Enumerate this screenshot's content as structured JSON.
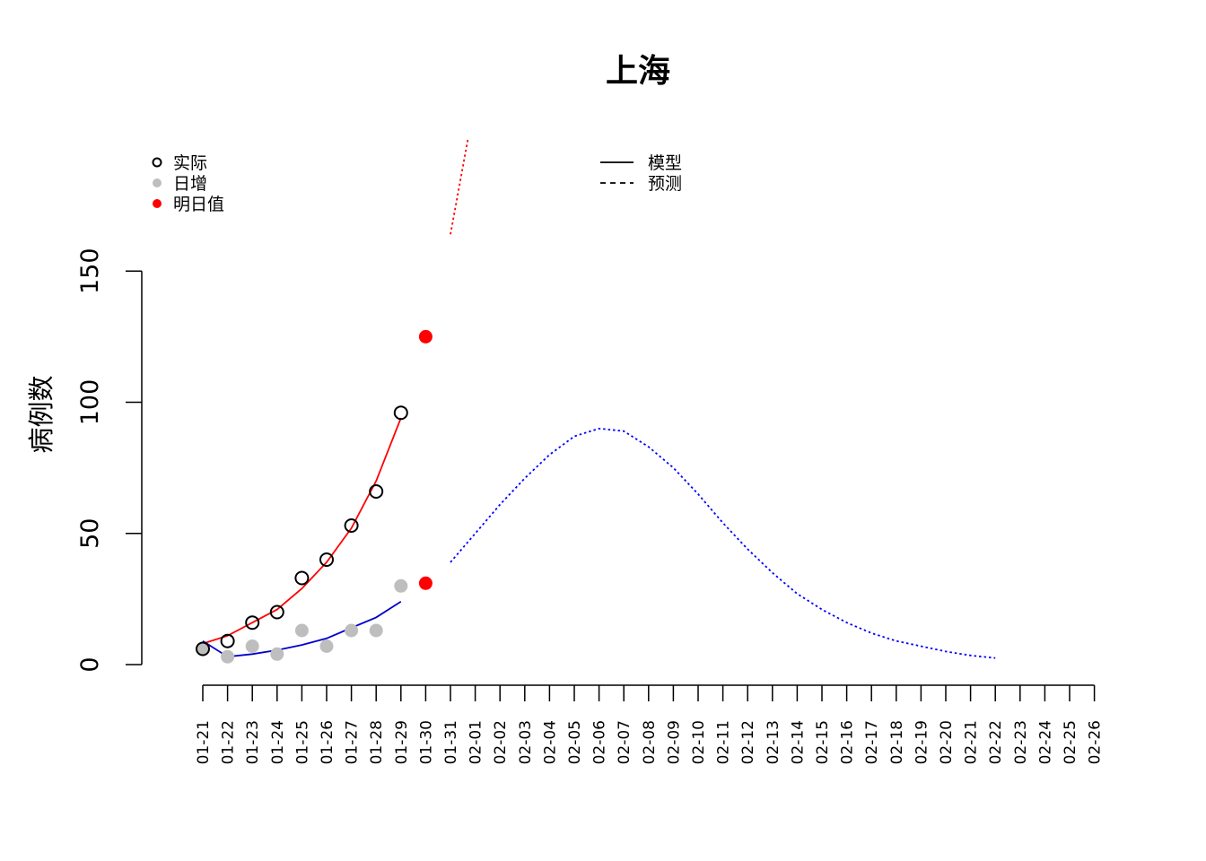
{
  "chart_data": {
    "type": "line",
    "title": "上海",
    "xlabel": "",
    "ylabel": "病例数",
    "ylim": [
      0,
      150
    ],
    "yticks": [
      "0",
      "50",
      "100",
      "150"
    ],
    "categories": [
      "01-21",
      "01-22",
      "01-23",
      "01-24",
      "01-25",
      "01-26",
      "01-27",
      "01-28",
      "01-29",
      "01-30",
      "01-31",
      "02-01",
      "02-02",
      "02-03",
      "02-04",
      "02-05",
      "02-06",
      "02-07",
      "02-08",
      "02-09",
      "02-10",
      "02-11",
      "02-12",
      "02-13",
      "02-14",
      "02-15",
      "02-16",
      "02-17",
      "02-18",
      "02-19",
      "02-20",
      "02-21",
      "02-22",
      "02-23",
      "02-24",
      "02-25",
      "02-26"
    ],
    "legend_left": [
      {
        "label": "实际",
        "marker": "open-circle",
        "color": "#000000"
      },
      {
        "label": "日增",
        "marker": "filled-circle",
        "color": "#bebebe"
      },
      {
        "label": "明日值",
        "marker": "filled-circle",
        "color": "#ff0000"
      }
    ],
    "legend_right": [
      {
        "label": "模型",
        "line": "solid",
        "color": "#000000"
      },
      {
        "label": "预测",
        "line": "dashed",
        "color": "#000000"
      }
    ],
    "series": [
      {
        "kind": "points-open",
        "color": "#000000",
        "x": [
          0,
          1,
          2,
          3,
          4,
          5,
          6,
          7,
          8
        ],
        "y": [
          6,
          9,
          16,
          20,
          33,
          40,
          53,
          66,
          96
        ]
      },
      {
        "kind": "points-filled",
        "color": "#bebebe",
        "x": [
          0,
          1,
          2,
          3,
          4,
          5,
          6,
          7,
          8
        ],
        "y": [
          6,
          3,
          7,
          4,
          13,
          7,
          13,
          13,
          30
        ]
      },
      {
        "kind": "points-filled",
        "color": "#ff0000",
        "x": [
          9,
          9
        ],
        "y": [
          125,
          31
        ]
      },
      {
        "kind": "line-solid",
        "color": "#ff0000",
        "x": [
          0,
          1,
          2,
          3,
          4,
          5,
          6,
          7,
          8
        ],
        "y": [
          8,
          11,
          16,
          21,
          29,
          39,
          52,
          70,
          94
        ]
      },
      {
        "kind": "line-solid",
        "color": "#0000cd",
        "x": [
          0,
          1,
          2,
          3,
          4,
          5,
          6,
          7,
          8
        ],
        "y": [
          9,
          3,
          4,
          5.5,
          7.5,
          10,
          14,
          18,
          24
        ]
      },
      {
        "kind": "line-dotted",
        "color": "#ff0000",
        "x": [
          10,
          10.7
        ],
        "y": [
          164,
          200
        ]
      },
      {
        "kind": "line-dotted",
        "color": "#0000ff",
        "x": [
          10,
          11,
          12,
          13,
          14,
          15,
          16,
          17,
          18,
          19,
          20,
          21,
          22,
          23,
          24,
          25,
          26,
          27,
          28,
          29,
          30,
          31,
          32
        ],
        "y": [
          39,
          50,
          61,
          71,
          80,
          87,
          90,
          89,
          83,
          75,
          65,
          54,
          44,
          35,
          27,
          21,
          16,
          12,
          9,
          7,
          5,
          3.5,
          2.5
        ]
      }
    ]
  }
}
